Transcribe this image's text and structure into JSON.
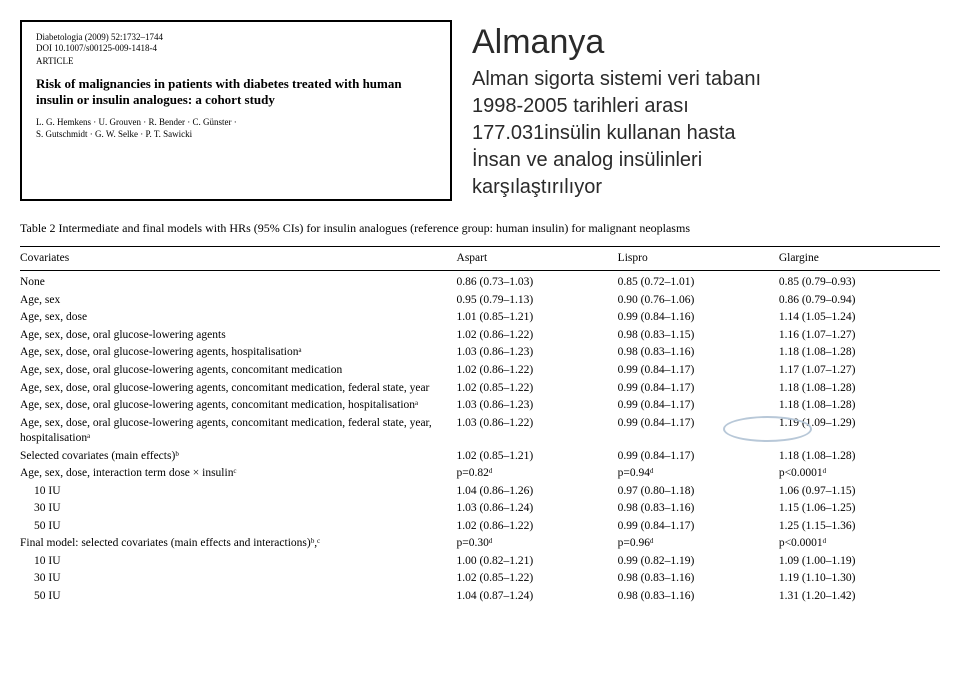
{
  "article": {
    "journal_line1": "Diabetologia (2009) 52:1732–1744",
    "journal_line2": "DOI 10.1007/s00125-009-1418-4",
    "label": "ARTICLE",
    "title": "Risk of malignancies in patients with diabetes treated with human insulin or insulin analogues: a cohort study",
    "authors_line1": "L. G. Hemkens · U. Grouven · R. Bender · C. Günster ·",
    "authors_line2": "S. Gutschmidt · G. W. Selke · P. T. Sawicki"
  },
  "turkish": {
    "title": "Almanya",
    "line1": "Alman sigorta sistemi veri tabanı",
    "line2": "1998-2005 tarihleri arası",
    "line3": "177.031insülin kullanan hasta",
    "line4": "İnsan ve analog insülinleri",
    "line5": "karşılaştırılıyor"
  },
  "table": {
    "caption": "Table 2  Intermediate and final models with HRs (95% CIs) for insulin analogues (reference group: human insulin) for malignant neoplasms",
    "headers": [
      "Covariates",
      "Aspart",
      "Lispro",
      "Glargine"
    ],
    "rows": [
      {
        "cov": "None",
        "a": "0.86 (0.73–1.03)",
        "l": "0.85 (0.72–1.01)",
        "g": "0.85 (0.79–0.93)",
        "indent": 0
      },
      {
        "cov": "Age, sex",
        "a": "0.95 (0.79–1.13)",
        "l": "0.90 (0.76–1.06)",
        "g": "0.86 (0.79–0.94)",
        "indent": 0
      },
      {
        "cov": "Age, sex, dose",
        "a": "1.01 (0.85–1.21)",
        "l": "0.99 (0.84–1.16)",
        "g": "1.14 (1.05–1.24)",
        "indent": 0
      },
      {
        "cov": "Age, sex, dose, oral glucose-lowering agents",
        "a": "1.02 (0.86–1.22)",
        "l": "0.98 (0.83–1.15)",
        "g": "1.16 (1.07–1.27)",
        "indent": 0
      },
      {
        "cov": "Age, sex, dose, oral glucose-lowering agents, hospitalisationᵃ",
        "a": "1.03 (0.86–1.23)",
        "l": "0.98 (0.83–1.16)",
        "g": "1.18 (1.08–1.28)",
        "indent": 0
      },
      {
        "cov": "Age, sex, dose, oral glucose-lowering agents, concomitant medication",
        "a": "1.02 (0.86–1.22)",
        "l": "0.99 (0.84–1.17)",
        "g": "1.17 (1.07–1.27)",
        "indent": 0
      },
      {
        "cov": "Age, sex, dose, oral glucose-lowering agents, concomitant medication, federal state, year",
        "a": "1.02 (0.85–1.22)",
        "l": "0.99 (0.84–1.17)",
        "g": "1.18 (1.08–1.28)",
        "indent": 0
      },
      {
        "cov": "Age, sex, dose, oral glucose-lowering agents, concomitant medication, hospitalisationᵃ",
        "a": "1.03 (0.86–1.23)",
        "l": "0.99 (0.84–1.17)",
        "g": "1.18 (1.08–1.28)",
        "indent": 0
      },
      {
        "cov": "Age, sex, dose, oral glucose-lowering agents, concomitant medication, federal state, year, hospitalisationᵃ",
        "a": "1.03 (0.86–1.22)",
        "l": "0.99 (0.84–1.17)",
        "g": "1.19 (1.09–1.29)",
        "indent": 0
      },
      {
        "cov": "Selected covariates (main effects)ᵇ",
        "a": "1.02 (0.85–1.21)",
        "l": "0.99 (0.84–1.17)",
        "g": "1.18 (1.08–1.28)",
        "indent": 0
      },
      {
        "cov": "Age, sex, dose, interaction term dose × insulinᶜ",
        "a": "p=0.82ᵈ",
        "l": "p=0.94ᵈ",
        "g": "p<0.0001ᵈ",
        "indent": 0
      },
      {
        "cov": "10 IU",
        "a": "1.04 (0.86–1.26)",
        "l": "0.97 (0.80–1.18)",
        "g": "1.06 (0.97–1.15)",
        "indent": 1
      },
      {
        "cov": "30 IU",
        "a": "1.03 (0.86–1.24)",
        "l": "0.98 (0.83–1.16)",
        "g": "1.15 (1.06–1.25)",
        "indent": 1
      },
      {
        "cov": "50 IU",
        "a": "1.02 (0.86–1.22)",
        "l": "0.99 (0.84–1.17)",
        "g": "1.25 (1.15–1.36)",
        "indent": 1
      },
      {
        "cov": "Final model: selected covariates (main effects and interactions)ᵇ,ᶜ",
        "a": "p=0.30ᵈ",
        "l": "p=0.96ᵈ",
        "g": "p<0.0001ᵈ",
        "indent": 0
      },
      {
        "cov": "10 IU",
        "a": "1.00 (0.82–1.21)",
        "l": "0.99 (0.82–1.19)",
        "g": "1.09 (1.00–1.19)",
        "indent": 1
      },
      {
        "cov": "30 IU",
        "a": "1.02 (0.85–1.22)",
        "l": "0.98 (0.83–1.16)",
        "g": "1.19 (1.10–1.30)",
        "indent": 1
      },
      {
        "cov": "50 IU",
        "a": "1.04 (0.87–1.24)",
        "l": "0.98 (0.83–1.16)",
        "g": "1.31 (1.20–1.42)",
        "indent": 1
      }
    ]
  }
}
